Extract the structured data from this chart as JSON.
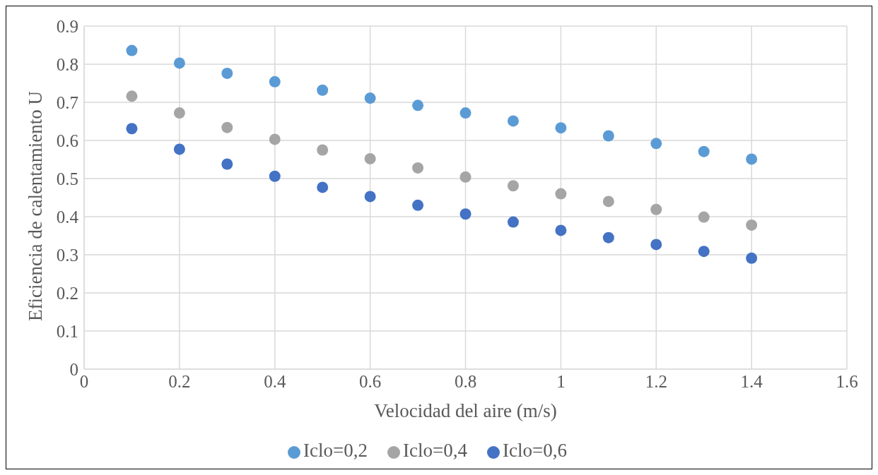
{
  "chart_data": {
    "type": "scatter",
    "xlabel": "Velocidad del aire (m/s)",
    "ylabel": "Eficiencia de calentamiento U",
    "x": [
      0.1,
      0.2,
      0.3,
      0.4,
      0.5,
      0.6,
      0.7,
      0.8,
      0.9,
      1.0,
      1.1,
      1.2,
      1.3,
      1.4
    ],
    "series": [
      {
        "name": "Iclo=0,2",
        "color": "#5b9bd5",
        "values": [
          0.836,
          0.803,
          0.776,
          0.754,
          0.732,
          0.711,
          0.692,
          0.672,
          0.651,
          0.633,
          0.612,
          0.592,
          0.571,
          0.551
        ]
      },
      {
        "name": "Iclo=0,4",
        "color": "#a5a5a5",
        "values": [
          0.716,
          0.672,
          0.634,
          0.603,
          0.575,
          0.552,
          0.528,
          0.504,
          0.481,
          0.46,
          0.44,
          0.419,
          0.399,
          0.378
        ]
      },
      {
        "name": "Iclo=0,6",
        "color": "#4472c4",
        "values": [
          0.631,
          0.577,
          0.538,
          0.506,
          0.477,
          0.453,
          0.43,
          0.407,
          0.386,
          0.364,
          0.345,
          0.327,
          0.309,
          0.291
        ]
      }
    ],
    "xlim": [
      0,
      1.6
    ],
    "xticks": [
      0,
      0.2,
      0.4,
      0.6,
      0.8,
      1,
      1.2,
      1.4,
      1.6
    ],
    "ylim": [
      0,
      0.9
    ],
    "yticks": [
      0,
      0.1,
      0.2,
      0.3,
      0.4,
      0.5,
      0.6,
      0.7,
      0.8,
      0.9
    ],
    "grid": true,
    "legend": "bottom",
    "marker": "circle"
  }
}
